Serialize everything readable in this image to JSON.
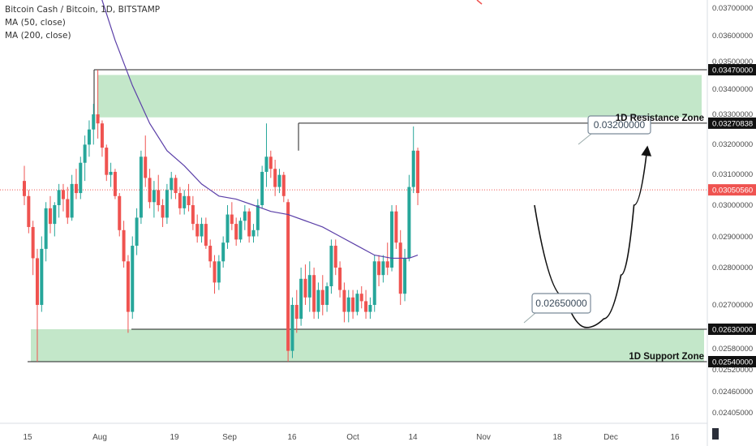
{
  "legend": {
    "symbol": "Bitcoin Cash / Bitcoin, 1D, BITSTAMP",
    "ma50": "MA (50, close)",
    "ma200": "MA (200, close)"
  },
  "colors": {
    "up": "#26a69a",
    "down": "#ef5350",
    "ma200": "#5b3fa8",
    "zone": "#b9e3bf",
    "current": "#ef5350"
  },
  "chart_data": {
    "type": "candlestick",
    "title": "Bitcoin Cash / Bitcoin, 1D, BITSTAMP",
    "y_axis_ticks": [
      "0.03700000",
      "0.03600000",
      "0.03500000",
      "0.03400000",
      "0.03300000",
      "0.03200000",
      "0.03100000",
      "0.03000000",
      "0.02900000",
      "0.02800000",
      "0.02700000",
      "0.02580000",
      "0.02520000",
      "0.02460000",
      "0.02405000"
    ],
    "x_axis_ticks": [
      "15",
      "Aug",
      "19",
      "Sep",
      "16",
      "Oct",
      "14",
      "Nov",
      "18",
      "Dec",
      "16"
    ],
    "price_labels": [
      {
        "value": "0.03470000",
        "role": "top-line",
        "highlight": false
      },
      {
        "value": "0.03270838",
        "role": "resistance-line",
        "highlight": false
      },
      {
        "value": "0.03050560",
        "role": "current-price",
        "highlight": true
      },
      {
        "value": "0.02630000",
        "role": "support-top",
        "highlight": false
      },
      {
        "value": "0.02540000",
        "role": "support-line",
        "highlight": false
      }
    ],
    "zones": [
      {
        "label": "1D Resistance Zone",
        "low": 0.0329,
        "high": 0.0345
      },
      {
        "label": "1D Support Zone",
        "low": 0.0254,
        "high": 0.0263
      }
    ],
    "levels": [
      0.0347,
      0.03270838,
      0.0263,
      0.0254
    ],
    "current_price": 0.0305056,
    "annotations": [
      {
        "text": "0.02650000"
      },
      {
        "text": "0.03200000"
      }
    ],
    "projection": [
      {
        "day": 119,
        "price": 0.03
      },
      {
        "day": 126,
        "price": 0.0272
      },
      {
        "day": 131,
        "price": 0.02635
      },
      {
        "day": 135,
        "price": 0.0266
      },
      {
        "day": 139,
        "price": 0.0278
      },
      {
        "day": 142,
        "price": 0.03
      },
      {
        "day": 145,
        "price": 0.0318
      }
    ],
    "candles": [
      {
        "day": 1,
        "o": 0.0308,
        "h": 0.0313,
        "l": 0.03,
        "c": 0.0303
      },
      {
        "day": 2,
        "o": 0.0303,
        "h": 0.0305,
        "l": 0.0291,
        "c": 0.0293
      },
      {
        "day": 3,
        "o": 0.0293,
        "h": 0.0295,
        "l": 0.0278,
        "c": 0.0283
      },
      {
        "day": 4,
        "o": 0.0283,
        "h": 0.0286,
        "l": 0.0254,
        "c": 0.027
      },
      {
        "day": 5,
        "o": 0.027,
        "h": 0.029,
        "l": 0.0268,
        "c": 0.0286
      },
      {
        "day": 6,
        "o": 0.0286,
        "h": 0.0301,
        "l": 0.0282,
        "c": 0.0299
      },
      {
        "day": 7,
        "o": 0.0299,
        "h": 0.0303,
        "l": 0.0291,
        "c": 0.0294
      },
      {
        "day": 8,
        "o": 0.0294,
        "h": 0.0301,
        "l": 0.029,
        "c": 0.03
      },
      {
        "day": 9,
        "o": 0.03,
        "h": 0.0307,
        "l": 0.0296,
        "c": 0.0305
      },
      {
        "day": 10,
        "o": 0.0305,
        "h": 0.0307,
        "l": 0.0298,
        "c": 0.0302
      },
      {
        "day": 11,
        "o": 0.0302,
        "h": 0.0306,
        "l": 0.0294,
        "c": 0.0296
      },
      {
        "day": 12,
        "o": 0.0296,
        "h": 0.031,
        "l": 0.0295,
        "c": 0.0307
      },
      {
        "day": 13,
        "o": 0.0307,
        "h": 0.0312,
        "l": 0.0302,
        "c": 0.0304
      },
      {
        "day": 14,
        "o": 0.0304,
        "h": 0.0316,
        "l": 0.0302,
        "c": 0.0314
      },
      {
        "day": 15,
        "o": 0.0314,
        "h": 0.0323,
        "l": 0.0308,
        "c": 0.032
      },
      {
        "day": 16,
        "o": 0.032,
        "h": 0.0328,
        "l": 0.0316,
        "c": 0.0325
      },
      {
        "day": 17,
        "o": 0.0325,
        "h": 0.0334,
        "l": 0.032,
        "c": 0.033
      },
      {
        "day": 18,
        "o": 0.033,
        "h": 0.0347,
        "l": 0.0322,
        "c": 0.0327
      },
      {
        "day": 19,
        "o": 0.0327,
        "h": 0.0328,
        "l": 0.0316,
        "c": 0.0319
      },
      {
        "day": 20,
        "o": 0.0319,
        "h": 0.032,
        "l": 0.0308,
        "c": 0.031
      },
      {
        "day": 21,
        "o": 0.031,
        "h": 0.0314,
        "l": 0.0306,
        "c": 0.0311
      },
      {
        "day": 22,
        "o": 0.0311,
        "h": 0.0312,
        "l": 0.0302,
        "c": 0.0303
      },
      {
        "day": 23,
        "o": 0.0303,
        "h": 0.0304,
        "l": 0.029,
        "c": 0.0292
      },
      {
        "day": 24,
        "o": 0.0292,
        "h": 0.0295,
        "l": 0.028,
        "c": 0.0282
      },
      {
        "day": 25,
        "o": 0.0282,
        "h": 0.0284,
        "l": 0.0262,
        "c": 0.0268
      },
      {
        "day": 26,
        "o": 0.0268,
        "h": 0.029,
        "l": 0.0266,
        "c": 0.0287
      },
      {
        "day": 27,
        "o": 0.0287,
        "h": 0.0299,
        "l": 0.0284,
        "c": 0.0296
      },
      {
        "day": 28,
        "o": 0.0296,
        "h": 0.0318,
        "l": 0.0294,
        "c": 0.0316
      },
      {
        "day": 29,
        "o": 0.0316,
        "h": 0.0323,
        "l": 0.0306,
        "c": 0.0309
      },
      {
        "day": 30,
        "o": 0.0309,
        "h": 0.0312,
        "l": 0.0299,
        "c": 0.0301
      },
      {
        "day": 31,
        "o": 0.0301,
        "h": 0.0308,
        "l": 0.0296,
        "c": 0.0305
      },
      {
        "day": 32,
        "o": 0.0305,
        "h": 0.031,
        "l": 0.0298,
        "c": 0.03
      },
      {
        "day": 33,
        "o": 0.03,
        "h": 0.0302,
        "l": 0.0293,
        "c": 0.0296
      },
      {
        "day": 34,
        "o": 0.0296,
        "h": 0.0307,
        "l": 0.0294,
        "c": 0.0305
      },
      {
        "day": 35,
        "o": 0.0305,
        "h": 0.0311,
        "l": 0.0302,
        "c": 0.0309
      },
      {
        "day": 36,
        "o": 0.0309,
        "h": 0.031,
        "l": 0.0302,
        "c": 0.0304
      },
      {
        "day": 37,
        "o": 0.0304,
        "h": 0.0306,
        "l": 0.0297,
        "c": 0.0299
      },
      {
        "day": 38,
        "o": 0.0299,
        "h": 0.0305,
        "l": 0.0297,
        "c": 0.0303
      },
      {
        "day": 39,
        "o": 0.0303,
        "h": 0.0307,
        "l": 0.0298,
        "c": 0.03
      },
      {
        "day": 40,
        "o": 0.03,
        "h": 0.0303,
        "l": 0.0292,
        "c": 0.0294
      },
      {
        "day": 41,
        "o": 0.0294,
        "h": 0.0297,
        "l": 0.0288,
        "c": 0.029
      },
      {
        "day": 42,
        "o": 0.029,
        "h": 0.0296,
        "l": 0.0288,
        "c": 0.0294
      },
      {
        "day": 43,
        "o": 0.0294,
        "h": 0.0296,
        "l": 0.0286,
        "c": 0.0287
      },
      {
        "day": 44,
        "o": 0.0287,
        "h": 0.0289,
        "l": 0.028,
        "c": 0.0282
      },
      {
        "day": 45,
        "o": 0.0282,
        "h": 0.0284,
        "l": 0.0273,
        "c": 0.0276
      },
      {
        "day": 46,
        "o": 0.0276,
        "h": 0.0284,
        "l": 0.0274,
        "c": 0.0282
      },
      {
        "day": 47,
        "o": 0.0282,
        "h": 0.029,
        "l": 0.028,
        "c": 0.0288
      },
      {
        "day": 48,
        "o": 0.0288,
        "h": 0.03,
        "l": 0.0286,
        "c": 0.0297
      },
      {
        "day": 49,
        "o": 0.0297,
        "h": 0.0301,
        "l": 0.0292,
        "c": 0.0294
      },
      {
        "day": 50,
        "o": 0.0294,
        "h": 0.0296,
        "l": 0.0287,
        "c": 0.0289
      },
      {
        "day": 51,
        "o": 0.0289,
        "h": 0.0296,
        "l": 0.0288,
        "c": 0.0295
      },
      {
        "day": 52,
        "o": 0.0295,
        "h": 0.03,
        "l": 0.0292,
        "c": 0.0298
      },
      {
        "day": 53,
        "o": 0.0298,
        "h": 0.0299,
        "l": 0.0288,
        "c": 0.029
      },
      {
        "day": 54,
        "o": 0.029,
        "h": 0.0294,
        "l": 0.0288,
        "c": 0.0292
      },
      {
        "day": 55,
        "o": 0.0292,
        "h": 0.0302,
        "l": 0.029,
        "c": 0.03
      },
      {
        "day": 56,
        "o": 0.03,
        "h": 0.0313,
        "l": 0.0299,
        "c": 0.0311
      },
      {
        "day": 57,
        "o": 0.0311,
        "h": 0.0327,
        "l": 0.0306,
        "c": 0.0316
      },
      {
        "day": 58,
        "o": 0.0316,
        "h": 0.0318,
        "l": 0.0309,
        "c": 0.0312
      },
      {
        "day": 59,
        "o": 0.0312,
        "h": 0.0315,
        "l": 0.0303,
        "c": 0.0306
      },
      {
        "day": 60,
        "o": 0.0306,
        "h": 0.0312,
        "l": 0.0304,
        "c": 0.031
      },
      {
        "day": 61,
        "o": 0.031,
        "h": 0.0311,
        "l": 0.0301,
        "c": 0.0303
      },
      {
        "day": 62,
        "o": 0.0301,
        "h": 0.0302,
        "l": 0.0254,
        "c": 0.0257
      },
      {
        "day": 63,
        "o": 0.0257,
        "h": 0.0272,
        "l": 0.0255,
        "c": 0.027
      },
      {
        "day": 64,
        "o": 0.027,
        "h": 0.0274,
        "l": 0.0262,
        "c": 0.0266
      },
      {
        "day": 65,
        "o": 0.0266,
        "h": 0.028,
        "l": 0.0264,
        "c": 0.0277
      },
      {
        "day": 66,
        "o": 0.0277,
        "h": 0.0281,
        "l": 0.027,
        "c": 0.0272
      },
      {
        "day": 67,
        "o": 0.0272,
        "h": 0.0282,
        "l": 0.0268,
        "c": 0.0278
      },
      {
        "day": 68,
        "o": 0.0278,
        "h": 0.028,
        "l": 0.0266,
        "c": 0.0268
      },
      {
        "day": 69,
        "o": 0.0268,
        "h": 0.0276,
        "l": 0.0266,
        "c": 0.0274
      },
      {
        "day": 70,
        "o": 0.0274,
        "h": 0.0278,
        "l": 0.0267,
        "c": 0.027
      },
      {
        "day": 71,
        "o": 0.027,
        "h": 0.0276,
        "l": 0.0268,
        "c": 0.0275
      },
      {
        "day": 72,
        "o": 0.0275,
        "h": 0.0289,
        "l": 0.0273,
        "c": 0.0287
      },
      {
        "day": 73,
        "o": 0.0287,
        "h": 0.0289,
        "l": 0.0278,
        "c": 0.028
      },
      {
        "day": 74,
        "o": 0.028,
        "h": 0.0282,
        "l": 0.0272,
        "c": 0.0274
      },
      {
        "day": 75,
        "o": 0.0274,
        "h": 0.0276,
        "l": 0.0265,
        "c": 0.0268
      },
      {
        "day": 76,
        "o": 0.0268,
        "h": 0.0274,
        "l": 0.0265,
        "c": 0.0272
      },
      {
        "day": 77,
        "o": 0.0272,
        "h": 0.0274,
        "l": 0.0266,
        "c": 0.0268
      },
      {
        "day": 78,
        "o": 0.0268,
        "h": 0.0274,
        "l": 0.0267,
        "c": 0.0273
      },
      {
        "day": 79,
        "o": 0.0273,
        "h": 0.0275,
        "l": 0.0269,
        "c": 0.0271
      },
      {
        "day": 80,
        "o": 0.0271,
        "h": 0.0274,
        "l": 0.0266,
        "c": 0.0268
      },
      {
        "day": 81,
        "o": 0.0268,
        "h": 0.0272,
        "l": 0.0266,
        "c": 0.027
      },
      {
        "day": 82,
        "o": 0.027,
        "h": 0.0284,
        "l": 0.0268,
        "c": 0.0282
      },
      {
        "day": 83,
        "o": 0.0282,
        "h": 0.0284,
        "l": 0.0275,
        "c": 0.0278
      },
      {
        "day": 84,
        "o": 0.0278,
        "h": 0.0284,
        "l": 0.0276,
        "c": 0.0282
      },
      {
        "day": 85,
        "o": 0.0282,
        "h": 0.0288,
        "l": 0.0278,
        "c": 0.028
      },
      {
        "day": 86,
        "o": 0.028,
        "h": 0.03,
        "l": 0.0279,
        "c": 0.0298
      },
      {
        "day": 87,
        "o": 0.0298,
        "h": 0.03,
        "l": 0.0286,
        "c": 0.0288
      },
      {
        "day": 88,
        "o": 0.0288,
        "h": 0.0292,
        "l": 0.027,
        "c": 0.0273
      },
      {
        "day": 89,
        "o": 0.0273,
        "h": 0.0286,
        "l": 0.0271,
        "c": 0.0283
      },
      {
        "day": 90,
        "o": 0.0283,
        "h": 0.031,
        "l": 0.0282,
        "c": 0.0306
      },
      {
        "day": 91,
        "o": 0.0306,
        "h": 0.0326,
        "l": 0.0304,
        "c": 0.0318
      },
      {
        "day": 92,
        "o": 0.0318,
        "h": 0.0319,
        "l": 0.03,
        "c": 0.0304
      }
    ],
    "ma200": [
      {
        "day": 14,
        "v": 0.04
      },
      {
        "day": 18,
        "v": 0.0378
      },
      {
        "day": 22,
        "v": 0.0358
      },
      {
        "day": 26,
        "v": 0.0341
      },
      {
        "day": 30,
        "v": 0.0327
      },
      {
        "day": 34,
        "v": 0.0318
      },
      {
        "day": 38,
        "v": 0.0313
      },
      {
        "day": 42,
        "v": 0.0307
      },
      {
        "day": 46,
        "v": 0.0303
      },
      {
        "day": 50,
        "v": 0.0302
      },
      {
        "day": 54,
        "v": 0.03
      },
      {
        "day": 58,
        "v": 0.0298
      },
      {
        "day": 62,
        "v": 0.0297
      },
      {
        "day": 66,
        "v": 0.0295
      },
      {
        "day": 70,
        "v": 0.0293
      },
      {
        "day": 74,
        "v": 0.029
      },
      {
        "day": 78,
        "v": 0.0287
      },
      {
        "day": 82,
        "v": 0.0284
      },
      {
        "day": 86,
        "v": 0.0283
      },
      {
        "day": 90,
        "v": 0.0283
      },
      {
        "day": 92,
        "v": 0.0284
      }
    ]
  }
}
